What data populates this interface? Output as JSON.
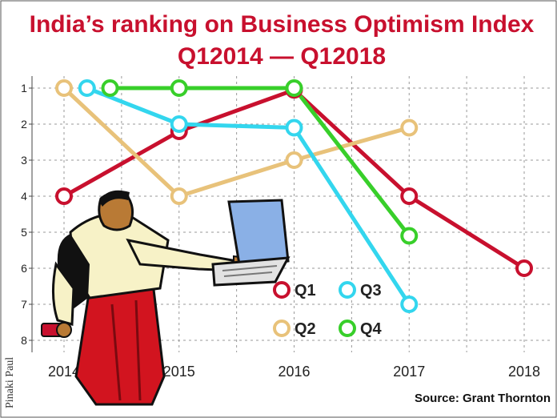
{
  "chart_data": {
    "type": "line",
    "title_line1": "India’s ranking on Business Optimism Index",
    "title_line2": "Q12014 — Q12018",
    "x": [
      2014,
      2015,
      2016,
      2017,
      2018
    ],
    "x_tick_labels": [
      "2014",
      "2015",
      "2016",
      "2017",
      "2018"
    ],
    "y_tick_labels": [
      "1",
      "2",
      "3",
      "4",
      "5",
      "6",
      "7",
      "8"
    ],
    "ylim": [
      1,
      8
    ],
    "y_inverted": true,
    "grid": true,
    "legend_placement": "bottom-center",
    "series": [
      {
        "name": "Q1",
        "color": "#c8102e",
        "points": [
          [
            2014,
            4
          ],
          [
            2015,
            2.2
          ],
          [
            2016,
            1.05
          ],
          [
            2017,
            4
          ],
          [
            2018,
            6
          ]
        ]
      },
      {
        "name": "Q2",
        "color": "#e8c27a",
        "points": [
          [
            2014,
            1
          ],
          [
            2015,
            4
          ],
          [
            2016,
            3
          ],
          [
            2017,
            2.1
          ]
        ]
      },
      {
        "name": "Q3",
        "color": "#33d6ee",
        "points": [
          [
            2014.2,
            1
          ],
          [
            2015,
            2
          ],
          [
            2016,
            2.1
          ],
          [
            2017,
            7
          ]
        ]
      },
      {
        "name": "Q4",
        "color": "#38cf2a",
        "points": [
          [
            2014.4,
            1
          ],
          [
            2015,
            1
          ],
          [
            2016,
            1
          ],
          [
            2017,
            5.1
          ]
        ]
      }
    ],
    "source": "Source: Grant Thornton",
    "credit": "Pinaki Paul"
  }
}
